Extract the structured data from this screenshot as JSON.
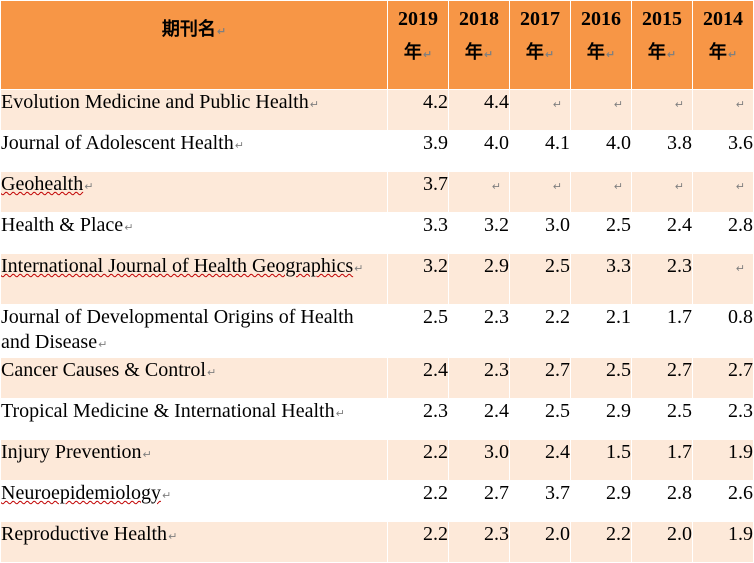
{
  "header": {
    "name_label": "期刊名",
    "years": [
      "2019",
      "2018",
      "2017",
      "2016",
      "2015",
      "2014"
    ],
    "year_suffix": "年",
    "para_mark": "↵"
  },
  "rows": [
    {
      "name": "Evolution Medicine and Public Health",
      "values": [
        "4.2",
        "4.4",
        "",
        "",
        "",
        ""
      ]
    },
    {
      "name": "Journal of Adolescent Health",
      "values": [
        "3.9",
        "4.0",
        "4.1",
        "4.0",
        "3.8",
        "3.6"
      ]
    },
    {
      "name": "Geohealth",
      "values": [
        "3.7",
        "",
        "",
        "",
        "",
        ""
      ]
    },
    {
      "name": "Health & Place",
      "values": [
        "3.3",
        "3.2",
        "3.0",
        "2.5",
        "2.4",
        "2.8"
      ]
    },
    {
      "name": "International Journal of Health Geographics",
      "values": [
        "3.2",
        "2.9",
        "2.5",
        "3.3",
        "2.3",
        ""
      ]
    },
    {
      "name": "Journal of Developmental Origins of Health and Disease",
      "values": [
        "2.5",
        "2.3",
        "2.2",
        "2.1",
        "1.7",
        "0.8"
      ]
    },
    {
      "name": "Cancer Causes & Control",
      "values": [
        "2.4",
        "2.3",
        "2.7",
        "2.5",
        "2.7",
        "2.7"
      ]
    },
    {
      "name": "Tropical Medicine & International Health",
      "values": [
        "2.3",
        "2.4",
        "2.5",
        "2.9",
        "2.5",
        "2.3"
      ]
    },
    {
      "name": "Injury Prevention",
      "values": [
        "2.2",
        "3.0",
        "2.4",
        "1.5",
        "1.7",
        "1.9"
      ]
    },
    {
      "name": "Neuroepidemiology",
      "values": [
        "2.2",
        "2.7",
        "3.7",
        "2.9",
        "2.8",
        "2.6"
      ]
    },
    {
      "name": "Reproductive Health",
      "values": [
        "2.2",
        "2.3",
        "2.0",
        "2.2",
        "2.0",
        "1.9"
      ]
    }
  ]
}
